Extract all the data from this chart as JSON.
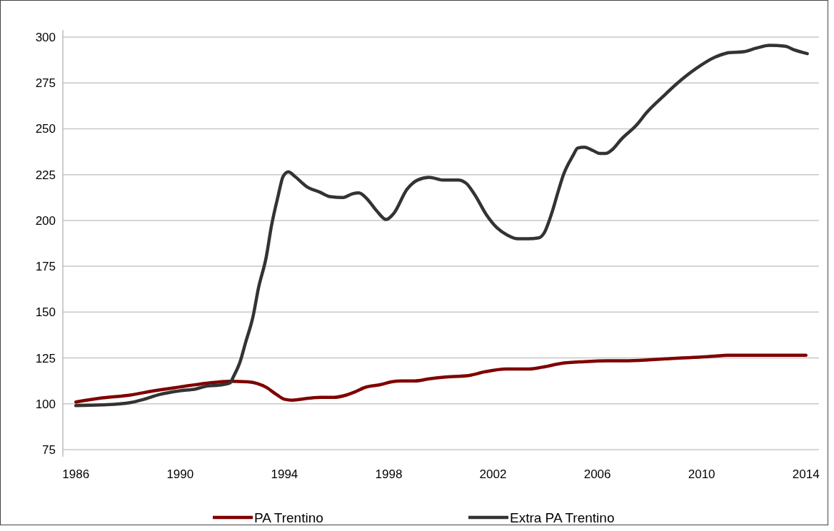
{
  "chart_data": {
    "type": "line",
    "xlim": [
      1985.5,
      2014.5
    ],
    "xticks": [
      1986,
      1990,
      1994,
      1998,
      2002,
      2006,
      2010,
      2014
    ],
    "ylim": [
      75,
      300
    ],
    "yticks": [
      75,
      100,
      125,
      150,
      175,
      200,
      225,
      250,
      275,
      300
    ],
    "grid": "y",
    "legend": "bottom",
    "marker": "none",
    "line_style": "solid",
    "series": [
      {
        "name": "PA Trentino",
        "color": "#7f0000",
        "x": [
          1986.0,
          1987.0,
          1988.1,
          1989.0,
          1990.0,
          1991.0,
          1991.9,
          1992.6,
          1993.3,
          1993.7,
          1994.0,
          1994.3,
          1994.9,
          1995.4,
          1995.9,
          1996.3,
          1996.7,
          1997.1,
          1997.7,
          1998.1,
          1998.5,
          1999.0,
          1999.5,
          2000.1,
          2001.1,
          2001.7,
          2002.5,
          2003.4,
          2003.9,
          2004.6,
          2005.5,
          2006.4,
          2007.2,
          2008.6,
          2010.5,
          2011.0,
          2014.0
        ],
        "values": [
          101,
          103.2,
          104.8,
          107.1,
          109.2,
          111.2,
          112.3,
          112,
          109,
          105,
          102.5,
          102,
          103,
          103.5,
          103.5,
          104.5,
          106.5,
          109,
          110.5,
          112,
          112.5,
          112.5,
          113.5,
          114.5,
          115.5,
          117.5,
          119,
          119,
          120,
          122,
          123,
          123.5,
          123.5,
          124.5,
          126,
          126.5,
          126.5
        ]
      },
      {
        "name": "Extra PA Trentino",
        "color": "#333333",
        "x": [
          1986.0,
          1987.0,
          1988.1,
          1988.6,
          1989.2,
          1990.0,
          1990.6,
          1991.0,
          1991.5,
          1991.9,
          1992.05,
          1992.3,
          1992.5,
          1992.8,
          1993.0,
          1993.3,
          1993.5,
          1993.75,
          1993.95,
          1994.15,
          1994.4,
          1994.9,
          1995.35,
          1995.75,
          1996.25,
          1996.6,
          1996.85,
          1997.15,
          1997.55,
          1997.9,
          1998.2,
          1998.7,
          1999.1,
          1999.55,
          2000.1,
          2000.65,
          2000.95,
          2001.3,
          2001.75,
          2002.15,
          2002.55,
          2002.95,
          2003.35,
          2003.75,
          2003.95,
          2004.25,
          2004.5,
          2004.7,
          2005.05,
          2005.25,
          2005.5,
          2005.85,
          2006.1,
          2006.3,
          2006.6,
          2006.9,
          2007.5,
          2007.9,
          2008.55,
          2009.0,
          2009.8,
          2010.5,
          2011.05,
          2011.6,
          2012.1,
          2012.6,
          2013.2,
          2013.55,
          2014.05
        ],
        "values": [
          99,
          99.4,
          100.7,
          102.4,
          105,
          107.1,
          108.1,
          109.6,
          110.2,
          111.3,
          115,
          123,
          133,
          148,
          163,
          180,
          197,
          213,
          224,
          226.5,
          224,
          218,
          215.5,
          213,
          212.5,
          214.5,
          215,
          212,
          205,
          200.5,
          204,
          217,
          222,
          223.5,
          222,
          222,
          220.5,
          214,
          203,
          196,
          192,
          190,
          190,
          190.5,
          193,
          204,
          216,
          225,
          235,
          239.5,
          240,
          238,
          236.5,
          236.5,
          239,
          244,
          252,
          259,
          268,
          274,
          283,
          289,
          291.5,
          292,
          294,
          295.5,
          295,
          293,
          291
        ]
      }
    ]
  }
}
